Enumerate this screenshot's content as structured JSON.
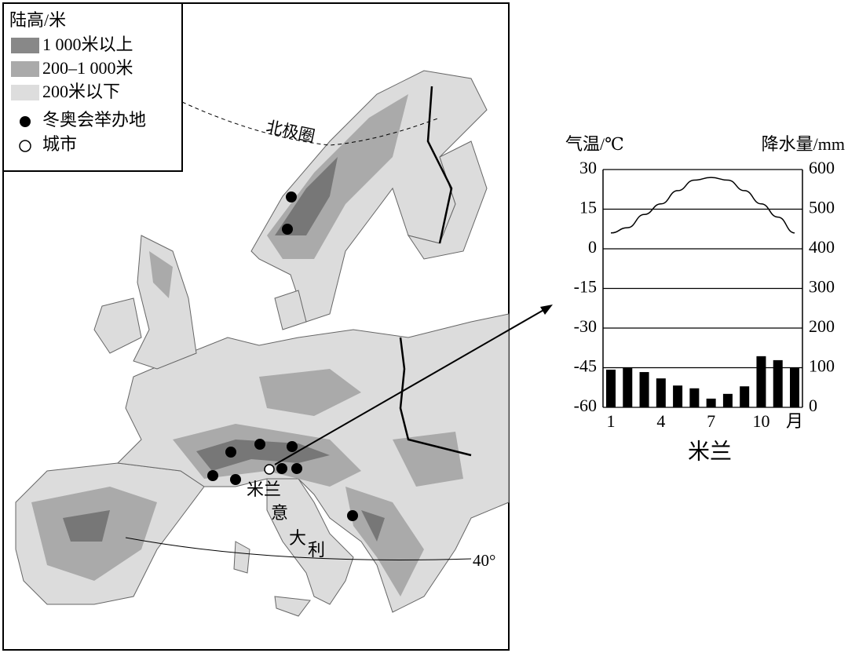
{
  "map": {
    "legend": {
      "title": "陆高/米",
      "items": [
        "1 000米以上",
        "200–1 000米",
        "200米以下",
        "冬奥会举办地",
        "城市"
      ]
    },
    "labels": {
      "arctic_circle": "北极圈",
      "city": "米兰",
      "country": [
        "意",
        "大",
        "利"
      ],
      "latitude": "40°"
    }
  },
  "chart_data": {
    "type": "climate",
    "xlabel": "米兰",
    "ylabel": "气温/℃",
    "y2label": "降水量/mm",
    "categories": [
      "1",
      null,
      null,
      "4",
      null,
      null,
      "7",
      null,
      null,
      "10",
      null,
      "月"
    ],
    "ylim": [
      -60,
      30
    ],
    "yticks": [
      30,
      15,
      0,
      -15,
      -30,
      -45,
      -60
    ],
    "y2lim": [
      0,
      600
    ],
    "y2ticks": [
      600,
      500,
      400,
      300,
      200,
      100,
      0
    ],
    "grid": true,
    "series": [
      {
        "type": "line",
        "color": "#000000",
        "axis": "y",
        "values": [
          6,
          8,
          13,
          17,
          22,
          26,
          27,
          26,
          22,
          17,
          12,
          6
        ]
      },
      {
        "type": "bar",
        "color": "#000000",
        "axis": "y2",
        "values": [
          95,
          101,
          89,
          73,
          55,
          48,
          22,
          34,
          53,
          129,
          119,
          101
        ]
      }
    ]
  }
}
